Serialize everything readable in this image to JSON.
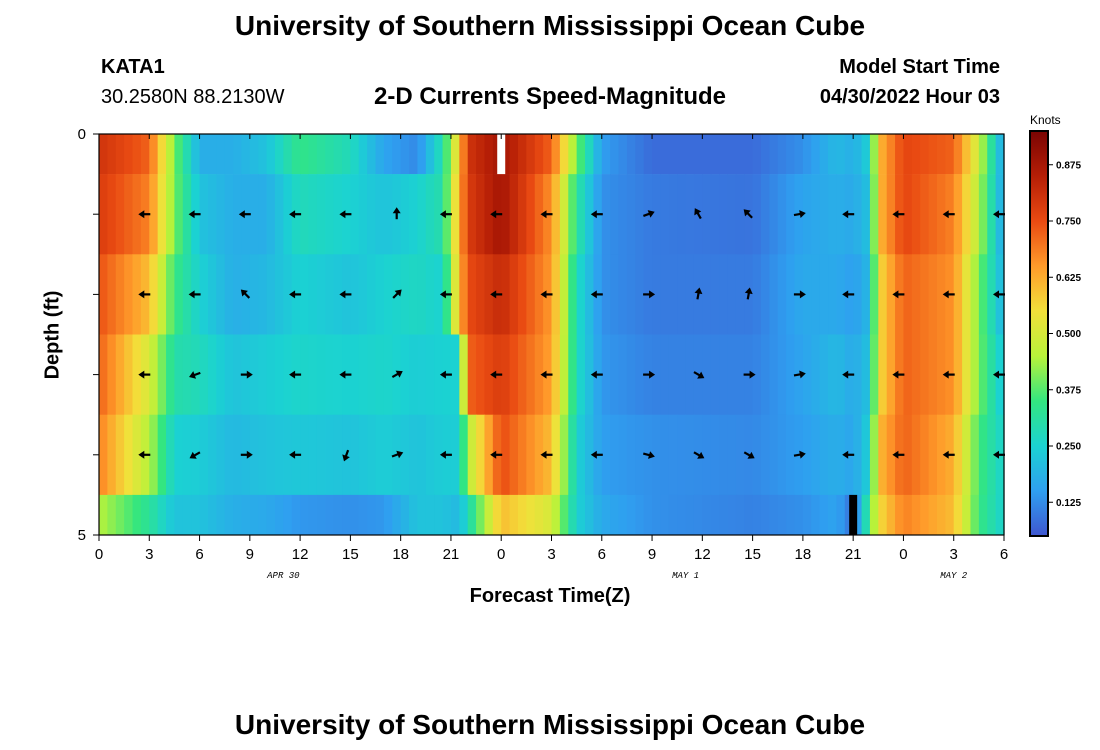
{
  "header": {
    "title": "University of Southern Mississippi Ocean Cube",
    "station_id": "KATA1",
    "coordinates": "30.2580N  88.2130W",
    "plot_title": "2-D Currents Speed-Magnitude",
    "model_start_label": "Model Start Time",
    "model_start_value": "04/30/2022 Hour 03"
  },
  "footer": {
    "title": "University of Southern Mississippi Ocean Cube"
  },
  "chart_data": {
    "type": "heatmap",
    "title": "2-D Currents Speed-Magnitude",
    "xlabel": "Forecast Time(Z)",
    "ylabel": "Depth (ft)",
    "colorbar_label": "Knots",
    "colorbar_ticks": [
      "0.875",
      "0.750",
      "0.625",
      "0.500",
      "0.375",
      "0.250",
      "0.125"
    ],
    "colorbar_range": [
      0.05,
      0.95
    ],
    "colorbar_colors": [
      "#3f56d0",
      "#2f9ff0",
      "#1bd2d2",
      "#33e680",
      "#b8f23a",
      "#f2e03a",
      "#ff9a2a",
      "#e94a12",
      "#b51e06",
      "#7a0403"
    ],
    "x_ticks": [
      "0",
      "3",
      "6",
      "9",
      "12",
      "15",
      "18",
      "21",
      "0",
      "3",
      "6",
      "9",
      "12",
      "15",
      "18",
      "21",
      "0",
      "3",
      "6"
    ],
    "date_labels": [
      {
        "text": "APR 30",
        "hour": 11
      },
      {
        "text": "MAY 1",
        "hour": 35
      },
      {
        "text": "MAY 2",
        "hour": 51
      }
    ],
    "x_range_hours": [
      0,
      54
    ],
    "y_ticks": [
      {
        "depth": 0,
        "label": "0"
      },
      {
        "depth": 1,
        "label": ""
      },
      {
        "depth": 2,
        "label": ""
      },
      {
        "depth": 3,
        "label": ""
      },
      {
        "depth": 4,
        "label": ""
      },
      {
        "depth": 5,
        "label": "5"
      }
    ],
    "y_range": [
      0,
      5
    ],
    "layers": [
      {
        "top": 0.0,
        "bottom": 0.5
      },
      {
        "top": 0.5,
        "bottom": 1.5
      },
      {
        "top": 1.5,
        "bottom": 2.5
      },
      {
        "top": 2.5,
        "bottom": 3.5
      },
      {
        "top": 3.5,
        "bottom": 4.5
      },
      {
        "top": 4.5,
        "bottom": 5.0
      }
    ],
    "speed_keyframes": [
      {
        "hour": 0,
        "speeds": [
          0.8,
          0.78,
          0.74,
          0.72,
          0.68,
          0.45
        ]
      },
      {
        "hour": 3,
        "speeds": [
          0.72,
          0.68,
          0.6,
          0.5,
          0.45,
          0.32
        ]
      },
      {
        "hour": 4.5,
        "speeds": [
          0.4,
          0.4,
          0.35,
          0.3,
          0.25,
          0.22
        ]
      },
      {
        "hour": 6,
        "speeds": [
          0.18,
          0.22,
          0.25,
          0.28,
          0.24,
          0.22
        ]
      },
      {
        "hour": 8,
        "speeds": [
          0.18,
          0.18,
          0.18,
          0.22,
          0.2,
          0.18
        ]
      },
      {
        "hour": 10,
        "speeds": [
          0.22,
          0.18,
          0.2,
          0.24,
          0.22,
          0.17
        ]
      },
      {
        "hour": 12,
        "speeds": [
          0.34,
          0.28,
          0.25,
          0.26,
          0.23,
          0.14
        ]
      },
      {
        "hour": 15,
        "speeds": [
          0.28,
          0.25,
          0.22,
          0.25,
          0.22,
          0.13
        ]
      },
      {
        "hour": 17,
        "speeds": [
          0.16,
          0.22,
          0.25,
          0.26,
          0.24,
          0.14
        ]
      },
      {
        "hour": 19,
        "speeds": [
          0.12,
          0.25,
          0.27,
          0.24,
          0.22,
          0.22
        ]
      },
      {
        "hour": 20.5,
        "speeds": [
          0.3,
          0.3,
          0.25,
          0.25,
          0.24,
          0.22
        ]
      },
      {
        "hour": 21.5,
        "speeds": [
          0.58,
          0.62,
          0.6,
          0.25,
          0.24,
          0.2
        ]
      },
      {
        "hour": 22,
        "speeds": [
          0.8,
          0.78,
          0.75,
          0.72,
          0.45,
          0.28
        ]
      },
      {
        "hour": 24,
        "speeds": [
          0.88,
          0.88,
          0.82,
          0.78,
          0.75,
          0.6
        ]
      },
      {
        "hour": 27,
        "speeds": [
          0.72,
          0.66,
          0.65,
          0.64,
          0.6,
          0.5
        ]
      },
      {
        "hour": 28.5,
        "speeds": [
          0.4,
          0.32,
          0.28,
          0.28,
          0.25,
          0.25
        ]
      },
      {
        "hour": 30,
        "speeds": [
          0.15,
          0.13,
          0.13,
          0.14,
          0.15,
          0.17
        ]
      },
      {
        "hour": 33,
        "speeds": [
          0.08,
          0.1,
          0.1,
          0.11,
          0.13,
          0.13
        ]
      },
      {
        "hour": 39,
        "speeds": [
          0.08,
          0.09,
          0.1,
          0.11,
          0.12,
          0.11
        ]
      },
      {
        "hour": 42,
        "speeds": [
          0.13,
          0.16,
          0.17,
          0.16,
          0.15,
          0.13
        ]
      },
      {
        "hour": 44,
        "speeds": [
          0.2,
          0.18,
          0.17,
          0.2,
          0.18,
          0.16
        ]
      },
      {
        "hour": 45,
        "speeds": [
          0.18,
          0.17,
          0.15,
          0.17,
          0.16,
          0.09
        ]
      },
      {
        "hour": 46,
        "speeds": [
          0.25,
          0.22,
          0.2,
          0.22,
          0.25,
          0.35
        ]
      },
      {
        "hour": 46.5,
        "speeds": [
          0.6,
          0.6,
          0.55,
          0.55,
          0.6,
          0.55
        ]
      },
      {
        "hour": 48,
        "speeds": [
          0.76,
          0.76,
          0.72,
          0.72,
          0.72,
          0.68
        ]
      },
      {
        "hour": 51,
        "speeds": [
          0.72,
          0.68,
          0.66,
          0.66,
          0.62,
          0.6
        ]
      },
      {
        "hour": 52.5,
        "speeds": [
          0.48,
          0.45,
          0.4,
          0.4,
          0.36,
          0.35
        ]
      },
      {
        "hour": 54,
        "speeds": [
          0.15,
          0.15,
          0.18,
          0.22,
          0.25,
          0.25
        ]
      }
    ],
    "missing_bars": [
      {
        "hour": 24,
        "depth_top": 0.0,
        "depth_bottom": 0.5,
        "color": "white"
      },
      {
        "hour": 45,
        "depth_top": 4.5,
        "depth_bottom": 5.0,
        "color": "black"
      }
    ],
    "arrow_depths": [
      1,
      2,
      3,
      4
    ],
    "arrows": [
      {
        "hour": 3,
        "dirs": [
          180,
          180,
          180,
          180
        ]
      },
      {
        "hour": 6,
        "dirs": [
          180,
          180,
          200,
          210
        ]
      },
      {
        "hour": 9,
        "dirs": [
          180,
          135,
          0,
          0
        ]
      },
      {
        "hour": 12,
        "dirs": [
          180,
          180,
          180,
          180
        ]
      },
      {
        "hour": 15,
        "dirs": [
          180,
          180,
          180,
          250
        ]
      },
      {
        "hour": 18,
        "dirs": [
          90,
          45,
          30,
          20
        ]
      },
      {
        "hour": 21,
        "dirs": [
          180,
          180,
          180,
          180
        ]
      },
      {
        "hour": 24,
        "dirs": [
          180,
          180,
          180,
          180
        ]
      },
      {
        "hour": 27,
        "dirs": [
          180,
          180,
          180,
          180
        ]
      },
      {
        "hour": 30,
        "dirs": [
          180,
          180,
          180,
          180
        ]
      },
      {
        "hour": 33,
        "dirs": [
          20,
          0,
          0,
          345
        ]
      },
      {
        "hour": 36,
        "dirs": [
          120,
          80,
          330,
          330
        ]
      },
      {
        "hour": 39,
        "dirs": [
          135,
          80,
          0,
          330
        ]
      },
      {
        "hour": 42,
        "dirs": [
          10,
          0,
          10,
          10
        ]
      },
      {
        "hour": 45,
        "dirs": [
          180,
          180,
          180,
          180
        ]
      },
      {
        "hour": 48,
        "dirs": [
          180,
          180,
          180,
          180
        ]
      },
      {
        "hour": 51,
        "dirs": [
          180,
          180,
          180,
          180
        ]
      },
      {
        "hour": 54,
        "dirs": [
          180,
          180,
          180,
          180
        ]
      }
    ]
  }
}
